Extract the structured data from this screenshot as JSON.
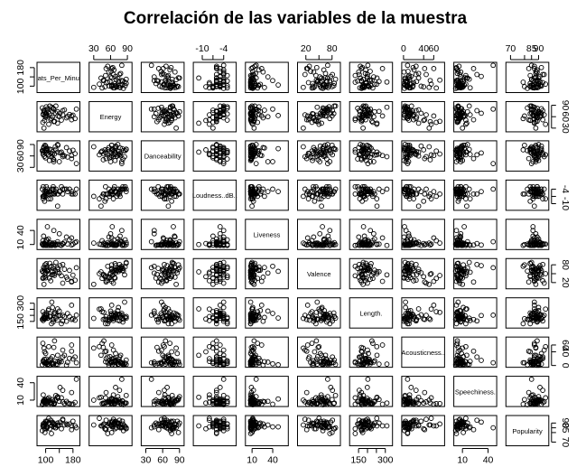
{
  "chart_data": {
    "type": "scatter",
    "title": "Correlación de las variables de la muestra",
    "variables": [
      {
        "name": "Beats_Per_Minute",
        "short_label": "ats_Per_Minu",
        "range": [
          80,
          195
        ],
        "ticks": [
          100,
          140,
          180
        ],
        "tick_labels": [
          "100",
          "",
          "180"
        ]
      },
      {
        "name": "Energy",
        "short_label": "Energy",
        "range": [
          25,
          95
        ],
        "ticks": [
          30,
          60,
          90
        ],
        "tick_labels": [
          "30",
          "60",
          "90"
        ]
      },
      {
        "name": "Danceability",
        "short_label": "Danceability",
        "range": [
          25,
          95
        ],
        "ticks": [
          30,
          60,
          90
        ],
        "tick_labels": [
          "30",
          "60",
          "90"
        ]
      },
      {
        "name": "Loudness..dB..",
        "short_label": "Loudness..dB..",
        "range": [
          -12,
          -1
        ],
        "ticks": [
          -10,
          -7,
          -4
        ],
        "tick_labels": [
          "-10",
          "",
          "-4"
        ]
      },
      {
        "name": "Liveness",
        "short_label": "Liveness",
        "range": [
          3,
          60
        ],
        "ticks": [
          10,
          40
        ],
        "tick_labels": [
          "10",
          "40"
        ]
      },
      {
        "name": "Valence",
        "short_label": "Valence",
        "range": [
          5,
          95
        ],
        "ticks": [
          20,
          50,
          80
        ],
        "tick_labels": [
          "20",
          "",
          "80"
        ]
      },
      {
        "name": "Length.",
        "short_label": "Length.",
        "range": [
          110,
          330
        ],
        "ticks": [
          150,
          200,
          250,
          300
        ],
        "tick_labels": [
          "150",
          "",
          "",
          "300"
        ]
      },
      {
        "name": "Acousticness..",
        "short_label": "Acousticness..",
        "range": [
          0,
          78
        ],
        "ticks": [
          0,
          40,
          60
        ],
        "tick_labels": [
          "0",
          "40",
          "60"
        ]
      },
      {
        "name": "Speechiness.",
        "short_label": "Speechiness.",
        "range": [
          2,
          48
        ],
        "ticks": [
          10,
          40
        ],
        "tick_labels": [
          "10",
          "40"
        ]
      },
      {
        "name": "Popularity",
        "short_label": "Popularity",
        "range": [
          68,
          96
        ],
        "ticks": [
          70,
          80,
          85,
          90
        ],
        "tick_labels": [
          "70",
          "",
          "85",
          "90"
        ]
      }
    ],
    "observations": [
      [
        117,
        55,
        76,
        -6,
        8,
        75,
        131,
        8,
        3,
        79
      ],
      [
        105,
        81,
        79,
        -4,
        8,
        61,
        176,
        4,
        9,
        92
      ],
      [
        190,
        80,
        40,
        -4,
        16,
        70,
        202,
        8,
        46,
        85
      ],
      [
        93,
        65,
        64,
        -8,
        8,
        55,
        157,
        12,
        19,
        86
      ],
      [
        150,
        65,
        58,
        -4,
        11,
        18,
        200,
        45,
        7,
        94
      ],
      [
        102,
        68,
        80,
        -5,
        9,
        84,
        220,
        9,
        4,
        84
      ],
      [
        180,
        64,
        75,
        -6,
        11,
        45,
        171,
        19,
        3,
        92
      ],
      [
        111,
        68,
        48,
        -5,
        8,
        35,
        193,
        1,
        10,
        90
      ],
      [
        136,
        62,
        88,
        -6,
        11,
        64,
        198,
        12,
        13,
        88
      ],
      [
        135,
        43,
        70,
        -11,
        10,
        56,
        253,
        30,
        15,
        87
      ],
      [
        176,
        62,
        61,
        -5,
        24,
        24,
        284,
        60,
        3,
        87
      ],
      [
        98,
        62,
        88,
        -6,
        10,
        80,
        173,
        8,
        11,
        80
      ],
      [
        102,
        62,
        76,
        -6,
        15,
        67,
        204,
        19,
        8,
        91
      ],
      [
        124,
        47,
        50,
        -6,
        9,
        48,
        166,
        53,
        5,
        88
      ],
      [
        90,
        83,
        74,
        -4,
        11,
        59,
        167,
        2,
        2,
        82
      ],
      [
        93,
        67,
        68,
        -3,
        10,
        37,
        174,
        14,
        8,
        89
      ],
      [
        95,
        30,
        84,
        -7,
        13,
        14,
        175,
        51,
        10,
        88
      ],
      [
        170,
        66,
        73,
        -4,
        20,
        61,
        190,
        21,
        4,
        89
      ],
      [
        96,
        75,
        72,
        -5,
        12,
        66,
        210,
        18,
        6,
        87
      ],
      [
        124,
        80,
        45,
        -4,
        40,
        75,
        216,
        5,
        3,
        86
      ],
      [
        146,
        51,
        70,
        -3,
        8,
        43,
        131,
        11,
        14,
        84
      ],
      [
        109,
        40,
        63,
        -8,
        11,
        50,
        252,
        55,
        14,
        95
      ],
      [
        176,
        52,
        53,
        -6,
        9,
        22,
        166,
        42,
        23,
        83
      ],
      [
        120,
        74,
        65,
        -4,
        11,
        57,
        265,
        4,
        11,
        90
      ],
      [
        104,
        77,
        67,
        -5,
        19,
        62,
        202,
        8,
        7,
        85
      ],
      [
        150,
        76,
        63,
        -6,
        12,
        81,
        154,
        25,
        27,
        93
      ],
      [
        120,
        59,
        71,
        -6,
        13,
        47,
        167,
        26,
        11,
        91
      ],
      [
        100,
        58,
        55,
        -7,
        9,
        36,
        182,
        6,
        7,
        89
      ],
      [
        112,
        88,
        78,
        -5,
        14,
        85,
        191,
        16,
        5,
        84
      ],
      [
        118,
        85,
        58,
        -4,
        8,
        46,
        309,
        4,
        5,
        87
      ],
      [
        96,
        71,
        59,
        -7,
        9,
        61,
        184,
        7,
        9,
        90
      ],
      [
        135,
        73,
        90,
        -6,
        16,
        70,
        160,
        3,
        16,
        90
      ],
      [
        140,
        60,
        45,
        -5,
        33,
        52,
        235,
        10,
        8,
        88
      ],
      [
        102,
        86,
        74,
        -3,
        20,
        73,
        184,
        7,
        5,
        86
      ],
      [
        161,
        57,
        82,
        -4,
        26,
        38,
        151,
        1,
        8,
        89
      ],
      [
        92,
        45,
        73,
        -7,
        18,
        34,
        230,
        65,
        4,
        87
      ],
      [
        128,
        70,
        84,
        -5,
        8,
        60,
        212,
        12,
        10,
        85
      ],
      [
        115,
        52,
        67,
        -8,
        10,
        26,
        190,
        20,
        6,
        93
      ],
      [
        155,
        78,
        60,
        -4,
        15,
        65,
        188,
        30,
        4,
        88
      ],
      [
        105,
        63,
        79,
        -5,
        48,
        58,
        178,
        2,
        12,
        86
      ],
      [
        142,
        69,
        68,
        -5,
        9,
        77,
        199,
        15,
        32,
        91
      ],
      [
        97,
        50,
        76,
        -9,
        12,
        40,
        170,
        40,
        5,
        84
      ],
      [
        122,
        82,
        52,
        -3,
        9,
        68,
        145,
        6,
        8,
        89
      ],
      [
        186,
        55,
        66,
        -6,
        14,
        28,
        160,
        25,
        6,
        87
      ],
      [
        108,
        73,
        62,
        -6,
        22,
        62,
        240,
        14,
        7,
        90
      ],
      [
        130,
        88,
        77,
        -4,
        10,
        88,
        177,
        3,
        18,
        85
      ],
      [
        100,
        69,
        86,
        -5,
        8,
        53,
        205,
        35,
        9,
        92
      ],
      [
        164,
        61,
        57,
        -5,
        11,
        31,
        215,
        9,
        5,
        88
      ],
      [
        94,
        77,
        81,
        -7,
        28,
        71,
        183,
        11,
        7,
        86
      ],
      [
        126,
        48,
        65,
        -6,
        13,
        44,
        225,
        72,
        4,
        89
      ]
    ],
    "grid": false,
    "legend": "none"
  }
}
